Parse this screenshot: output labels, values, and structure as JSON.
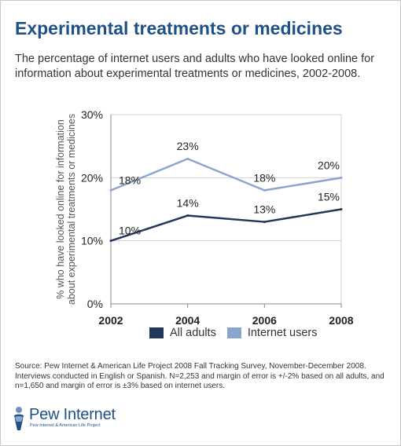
{
  "title": "Experimental treatments or medicines",
  "subtitle": "The percentage of internet users and adults who have looked online for information about experimental treatments or medicines, 2002-2008.",
  "source": "Source:  Pew Internet & American Life Project 2008 Fall Tracking Survey, November-December 2008. Interviews conducted in English or Spanish. N=2,253 and margin of error is +/-2% based on all adults, and n=1,650 and margin of error is ±3% based on internet users.",
  "logo": {
    "name": "Pew Internet",
    "tagline": "Pew Internet & American Life Project",
    "icon": "pew-person-icon"
  },
  "colors": {
    "title": "#1f5086",
    "all_adults": "#22385a",
    "internet_users": "#8aa6cf",
    "grid": "#d3d3d3"
  },
  "chart_data": {
    "type": "line",
    "x": [
      2002,
      2004,
      2006,
      2008
    ],
    "categories": [
      "2002",
      "2004",
      "2006",
      "2008"
    ],
    "series": [
      {
        "name": "All adults",
        "values": [
          10,
          14,
          13,
          15
        ],
        "labels": [
          "10%",
          "14%",
          "13%",
          "15%"
        ]
      },
      {
        "name": "Internet users",
        "values": [
          18,
          23,
          18,
          20
        ],
        "labels": [
          "18%",
          "23%",
          "18%",
          "20%"
        ]
      }
    ],
    "ylabel": "% who have looked online for information about experimental treatments or medicines",
    "ylabel_lines": [
      "% who have looked online for information",
      "about experimental treatments or medicines"
    ],
    "xlabel": "",
    "ylim": [
      0,
      30
    ],
    "yticks": [
      0,
      10,
      20,
      30
    ],
    "ytick_labels": [
      "0%",
      "10%",
      "20%",
      "30%"
    ],
    "grid": true,
    "legend_placement": "bottom"
  }
}
